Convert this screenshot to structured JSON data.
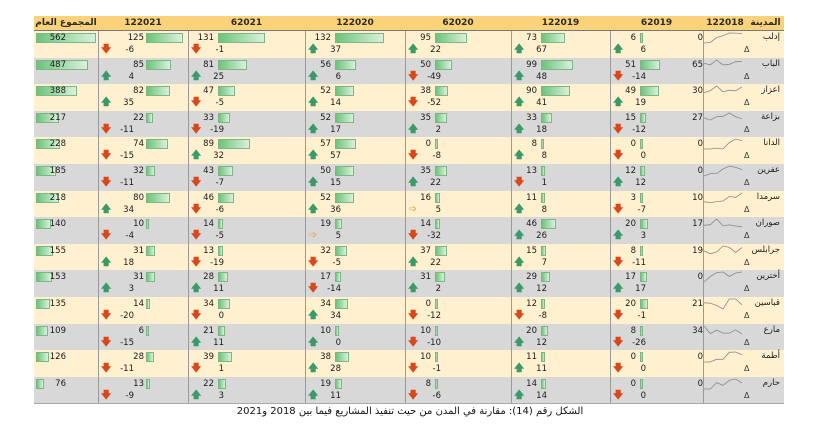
{
  "headers": [
    "المجموع العام",
    "122021",
    "62021",
    "122020",
    "62020",
    "122019",
    "62019",
    "122018",
    "المدينة"
  ],
  "colors": {
    "header_bg": "#f9d27a",
    "row_even": "#fff1cf",
    "row_odd": "#d8d8d8",
    "bar_green": "#6cc47a",
    "arrow_up": "#3a9a6a",
    "arrow_down": "#d9481c",
    "arrow_side": "#e8a13c"
  },
  "delta_symbol": "Δ",
  "rows": [
    {
      "city": "إدلب",
      "total": 562,
      "s122018": 0,
      "v62019": 6,
      "d62019": 6,
      "v122019": 73,
      "d122019": 67,
      "v62020": 95,
      "d62020": 22,
      "v122020": 132,
      "d122020": 37,
      "v62021": 131,
      "d62021": -1,
      "v122021": 125,
      "d122021": -6,
      "t62019": "up",
      "t122019": "up",
      "t62020": "up",
      "t122020": "up",
      "t62021": "down",
      "t122021": "down"
    },
    {
      "city": "الباب",
      "total": 487,
      "s122018": 65,
      "v62019": 51,
      "d62019": -14,
      "v122019": 99,
      "d122019": 48,
      "v62020": 50,
      "d62020": -49,
      "v122020": 56,
      "d122020": 6,
      "v62021": 81,
      "d62021": 25,
      "v122021": 85,
      "d122021": 4,
      "t62019": "down",
      "t122019": "up",
      "t62020": "down",
      "t122020": "up",
      "t62021": "up",
      "t122021": "up"
    },
    {
      "city": "اعزاز",
      "total": 388,
      "s122018": 30,
      "v62019": 49,
      "d62019": 19,
      "v122019": 90,
      "d122019": 41,
      "v62020": 38,
      "d62020": -52,
      "v122020": 52,
      "d122020": 14,
      "v62021": 47,
      "d62021": -5,
      "v122021": 82,
      "d122021": 35,
      "t62019": "up",
      "t122019": "up",
      "t62020": "down",
      "t122020": "up",
      "t62021": "down",
      "t122021": "up"
    },
    {
      "city": "بزاعة",
      "total": 217,
      "s122018": 27,
      "v62019": 15,
      "d62019": -12,
      "v122019": 33,
      "d122019": 18,
      "v62020": 35,
      "d62020": 2,
      "v122020": 52,
      "d122020": 17,
      "v62021": 33,
      "d62021": -19,
      "v122021": 22,
      "d122021": -11,
      "t62019": "down",
      "t122019": "up",
      "t62020": "up",
      "t122020": "up",
      "t62021": "down",
      "t122021": "down"
    },
    {
      "city": "الدانا",
      "total": 228,
      "s122018": 0,
      "v62019": 0,
      "d62019": 0,
      "v122019": 8,
      "d122019": 8,
      "v62020": 0,
      "d62020": -8,
      "v122020": 57,
      "d122020": 57,
      "v62021": 89,
      "d62021": 32,
      "v122021": 74,
      "d122021": -15,
      "t62019": "down",
      "t122019": "up",
      "t62020": "down",
      "t122020": "up",
      "t62021": "up",
      "t122021": "down"
    },
    {
      "city": "عفرين",
      "total": 185,
      "s122018": 0,
      "v62019": 12,
      "d62019": 12,
      "v122019": 13,
      "d122019": 1,
      "v62020": 35,
      "d62020": 22,
      "v122020": 50,
      "d122020": 15,
      "v62021": 43,
      "d62021": -7,
      "v122021": 32,
      "d122021": -11,
      "t62019": "up",
      "t122019": "down",
      "t62020": "up",
      "t122020": "up",
      "t62021": "down",
      "t122021": "down"
    },
    {
      "city": "سرمدا",
      "total": 218,
      "s122018": 10,
      "v62019": 3,
      "d62019": -7,
      "v122019": 11,
      "d122019": 8,
      "v62020": 16,
      "d62020": 5,
      "v122020": 52,
      "d122020": 36,
      "v62021": 46,
      "d62021": -6,
      "v122021": 80,
      "d122021": 34,
      "t62019": "down",
      "t122019": "up",
      "t62020": "side",
      "t122020": "up",
      "t62021": "down",
      "t122021": "up"
    },
    {
      "city": "صوران",
      "total": 140,
      "s122018": 17,
      "v62019": 20,
      "d62019": 3,
      "v122019": 46,
      "d122019": 26,
      "v62020": 14,
      "d62020": -32,
      "v122020": 19,
      "d122020": 5,
      "v62021": 14,
      "d62021": -5,
      "v122021": 10,
      "d122021": -4,
      "t62019": "up",
      "t122019": "up",
      "t62020": "down",
      "t122020": "side",
      "t62021": "down",
      "t122021": "down"
    },
    {
      "city": "جرابلس",
      "total": 155,
      "s122018": 19,
      "v62019": 8,
      "d62019": -11,
      "v122019": 15,
      "d122019": 7,
      "v62020": 37,
      "d62020": 22,
      "v122020": 32,
      "d122020": -5,
      "v62021": 13,
      "d62021": -19,
      "v122021": 31,
      "d122021": 18,
      "t62019": "down",
      "t122019": "up",
      "t62020": "up",
      "t122020": "down",
      "t62021": "down",
      "t122021": "up"
    },
    {
      "city": "أخترين",
      "total": 153,
      "s122018": 0,
      "v62019": 17,
      "d62019": 17,
      "v122019": 29,
      "d122019": 12,
      "v62020": 31,
      "d62020": 2,
      "v122020": 17,
      "d122020": -14,
      "v62021": 28,
      "d62021": 11,
      "v122021": 31,
      "d122021": 3,
      "t62019": "up",
      "t122019": "up",
      "t62020": "up",
      "t122020": "down",
      "t62021": "up",
      "t122021": "up"
    },
    {
      "city": "قباسين",
      "total": 135,
      "s122018": 21,
      "v62019": 20,
      "d62019": -1,
      "v122019": 12,
      "d122019": -8,
      "v62020": 0,
      "d62020": -12,
      "v122020": 34,
      "d122020": 34,
      "v62021": 34,
      "d62021": 0,
      "v122021": 14,
      "d122021": -20,
      "t62019": "down",
      "t122019": "down",
      "t62020": "down",
      "t122020": "up",
      "t62021": "down",
      "t122021": "down"
    },
    {
      "city": "مارع",
      "total": 109,
      "s122018": 34,
      "v62019": 8,
      "d62019": -26,
      "v122019": 20,
      "d122019": 12,
      "v62020": 10,
      "d62020": -10,
      "v122020": 10,
      "d122020": 0,
      "v62021": 21,
      "d62021": 11,
      "v122021": 6,
      "d122021": -15,
      "t62019": "down",
      "t122019": "up",
      "t62020": "down",
      "t122020": "up",
      "t62021": "up",
      "t122021": "down"
    },
    {
      "city": "أطمة",
      "total": 126,
      "s122018": 0,
      "v62019": 0,
      "d62019": 0,
      "v122019": 11,
      "d122019": 11,
      "v62020": 10,
      "d62020": -1,
      "v122020": 38,
      "d122020": 28,
      "v62021": 39,
      "d62021": 1,
      "v122021": 28,
      "d122021": -11,
      "t62019": "down",
      "t122019": "up",
      "t62020": "down",
      "t122020": "up",
      "t62021": "down",
      "t122021": "down"
    },
    {
      "city": "حارم",
      "total": 76,
      "s122018": 0,
      "v62019": 0,
      "d62019": 0,
      "v122019": 14,
      "d122019": 14,
      "v62020": 8,
      "d62020": -6,
      "v122020": 19,
      "d122020": 11,
      "v62021": 22,
      "d62021": 3,
      "v122021": 13,
      "d122021": -9,
      "t62019": "down",
      "t122019": "up",
      "t62020": "down",
      "t122020": "up",
      "t62021": "up",
      "t122021": "down"
    }
  ],
  "caption": "الشكل رقم (14): مقارنة في المدن من حيث تنفيذ المشاريع فيما بين 2018 و2021"
}
